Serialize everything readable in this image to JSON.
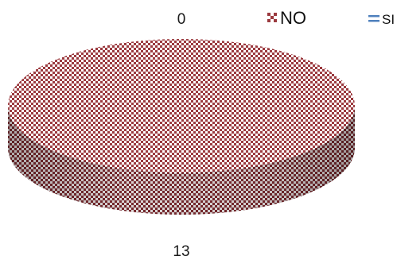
{
  "chart_data": {
    "type": "pie",
    "style": "3d",
    "categories": [
      "NO",
      "SI"
    ],
    "values": [
      13,
      0
    ],
    "data_labels": [
      "13",
      "0"
    ],
    "legend": {
      "placement": "top-right",
      "entries": [
        "NO",
        "SI"
      ]
    },
    "colors": {
      "NO": "#9b3a3f",
      "SI": "#4f81bd"
    }
  }
}
